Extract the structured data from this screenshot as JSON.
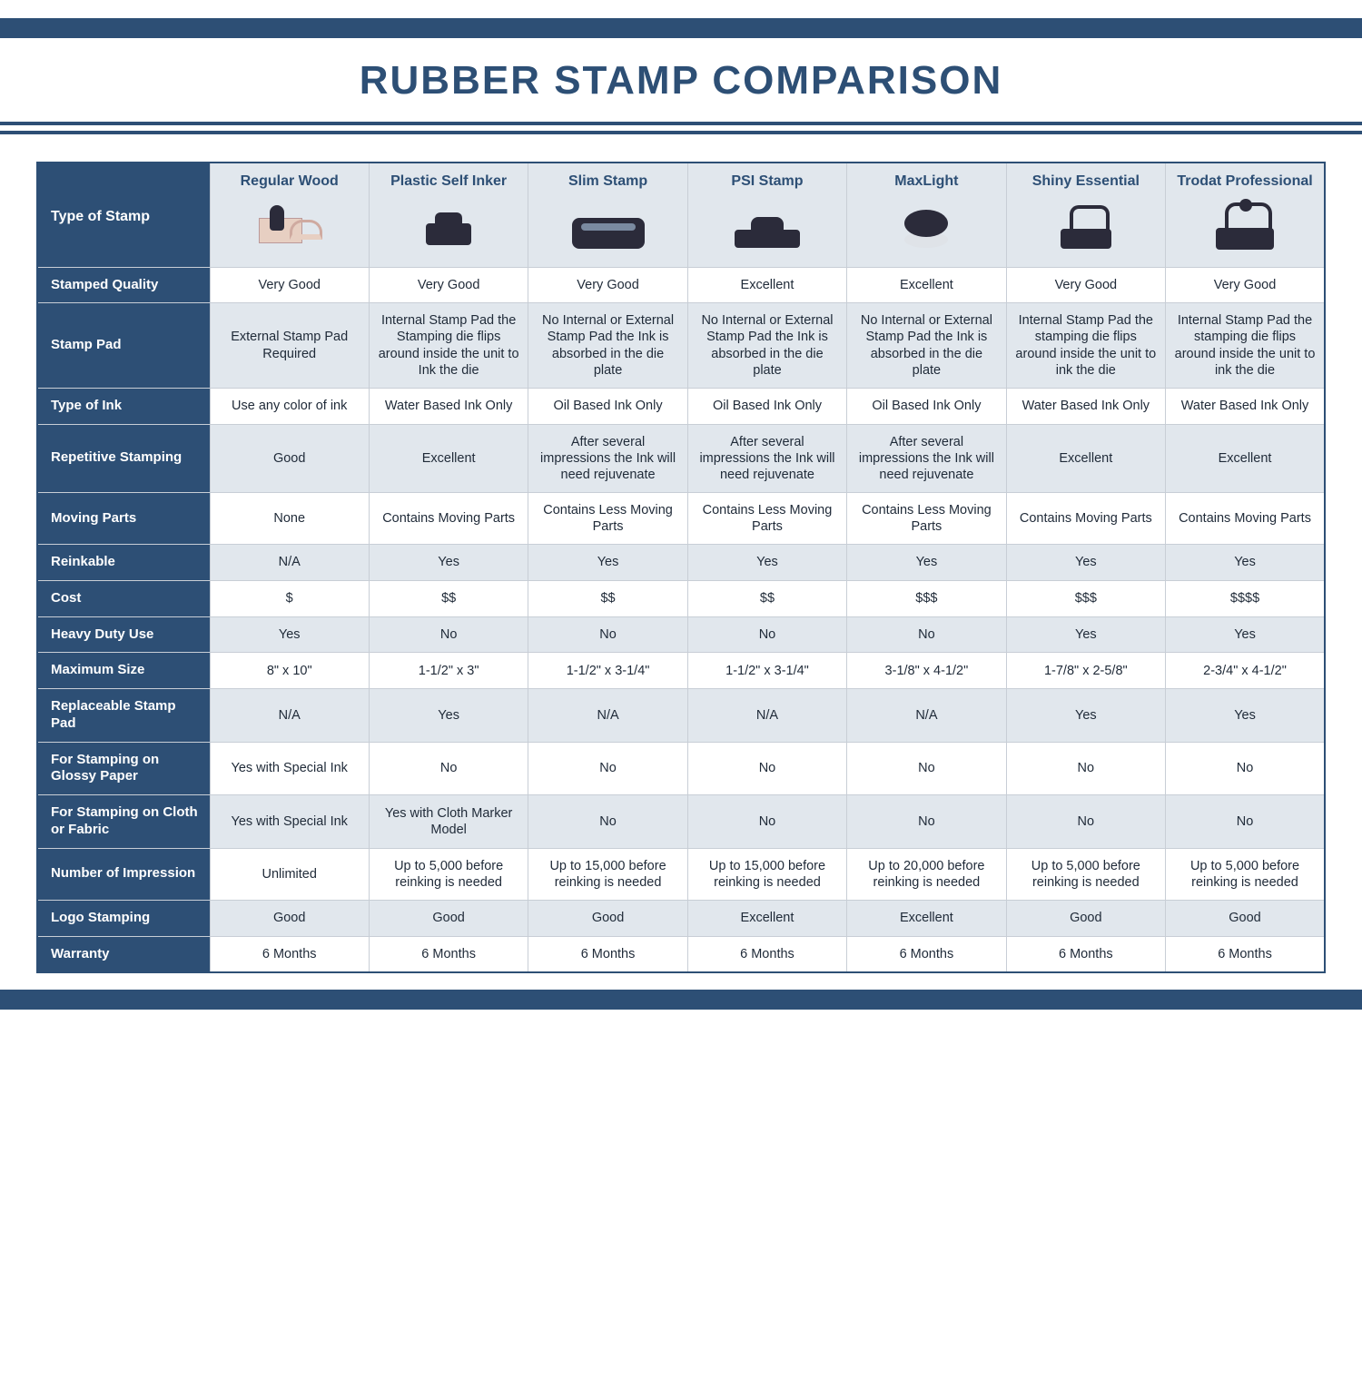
{
  "title": "RUBBER STAMP COMPARISON",
  "colors": {
    "navy": "#2d4f75",
    "row_alt": "#e1e7ed",
    "row_plain": "#ffffff",
    "border": "#c8ced6",
    "text": "#1f2a38"
  },
  "type_of_stamp_label": "Type of Stamp",
  "columns": [
    "Regular Wood",
    "Plastic Self Inker",
    "Slim Stamp",
    "PSI Stamp",
    "MaxLight",
    "Shiny Essential",
    "Trodat Professional"
  ],
  "rows": [
    {
      "label": "Stamped Quality",
      "alt": false,
      "cells": [
        "Very Good",
        "Very Good",
        "Very Good",
        "Excellent",
        "Excellent",
        "Very Good",
        "Very Good"
      ]
    },
    {
      "label": "Stamp Pad",
      "alt": true,
      "cells": [
        "External Stamp Pad Required",
        "Internal Stamp Pad the Stamping die flips around inside the unit to Ink the die",
        "No Internal or External Stamp Pad the Ink is absorbed in the die plate",
        "No Internal or External Stamp Pad the Ink is absorbed in the die plate",
        "No Internal or External Stamp Pad the Ink is absorbed in the die plate",
        "Internal Stamp Pad the stamping die flips around inside the unit to ink the die",
        "Internal Stamp Pad the stamping die flips around inside the unit to ink the die"
      ]
    },
    {
      "label": "Type of Ink",
      "alt": false,
      "cells": [
        "Use any color of ink",
        "Water Based Ink Only",
        "Oil Based Ink Only",
        "Oil Based Ink Only",
        "Oil Based Ink Only",
        "Water Based Ink Only",
        "Water Based Ink Only"
      ]
    },
    {
      "label": "Repetitive Stamping",
      "alt": true,
      "cells": [
        "Good",
        "Excellent",
        "After several impressions the Ink will need rejuvenate",
        "After several impressions the Ink will need rejuvenate",
        "After several impressions the Ink will need rejuvenate",
        "Excellent",
        "Excellent"
      ]
    },
    {
      "label": "Moving Parts",
      "alt": false,
      "cells": [
        "None",
        "Contains Moving Parts",
        "Contains Less Moving Parts",
        "Contains Less Moving Parts",
        "Contains Less Moving Parts",
        "Contains Moving Parts",
        "Contains Moving Parts"
      ]
    },
    {
      "label": "Reinkable",
      "alt": true,
      "cells": [
        "N/A",
        "Yes",
        "Yes",
        "Yes",
        "Yes",
        "Yes",
        "Yes"
      ]
    },
    {
      "label": "Cost",
      "alt": false,
      "cells": [
        "$",
        "$$",
        "$$",
        "$$",
        "$$$",
        "$$$",
        "$$$$"
      ]
    },
    {
      "label": "Heavy Duty Use",
      "alt": true,
      "cells": [
        "Yes",
        "No",
        "No",
        "No",
        "No",
        "Yes",
        "Yes"
      ]
    },
    {
      "label": "Maximum Size",
      "alt": false,
      "cells": [
        "8\" x 10\"",
        "1-1/2\" x 3\"",
        "1-1/2\" x 3-1/4\"",
        "1-1/2\" x 3-1/4\"",
        "3-1/8\" x 4-1/2\"",
        "1-7/8\" x 2-5/8\"",
        "2-3/4\" x 4-1/2\""
      ]
    },
    {
      "label": "Replaceable Stamp Pad",
      "alt": true,
      "cells": [
        "N/A",
        "Yes",
        "N/A",
        "N/A",
        "N/A",
        "Yes",
        "Yes"
      ]
    },
    {
      "label": "For Stamping on Glossy Paper",
      "alt": false,
      "cells": [
        "Yes with Special Ink",
        "No",
        "No",
        "No",
        "No",
        "No",
        "No"
      ]
    },
    {
      "label": "For Stamping on Cloth or Fabric",
      "alt": true,
      "cells": [
        "Yes with Special Ink",
        "Yes with Cloth Marker Model",
        "No",
        "No",
        "No",
        "No",
        "No"
      ]
    },
    {
      "label": "Number of Impression",
      "alt": false,
      "cells": [
        "Unlimited",
        "Up to 5,000 before reinking is needed",
        "Up to 15,000 before reinking is needed",
        "Up to 15,000 before reinking is needed",
        "Up to 20,000 before reinking is needed",
        "Up to 5,000 before reinking is needed",
        "Up to 5,000 before reinking is needed"
      ]
    },
    {
      "label": "Logo Stamping",
      "alt": true,
      "cells": [
        "Good",
        "Good",
        "Good",
        "Excellent",
        "Excellent",
        "Good",
        "Good"
      ]
    },
    {
      "label": "Warranty",
      "alt": false,
      "cells": [
        "6 Months",
        "6 Months",
        "6 Months",
        "6 Months",
        "6 Months",
        "6 Months",
        "6 Months"
      ]
    }
  ],
  "icons": [
    "wood",
    "selfinker",
    "slim",
    "psi",
    "maxlight",
    "shiny",
    "trodat"
  ]
}
